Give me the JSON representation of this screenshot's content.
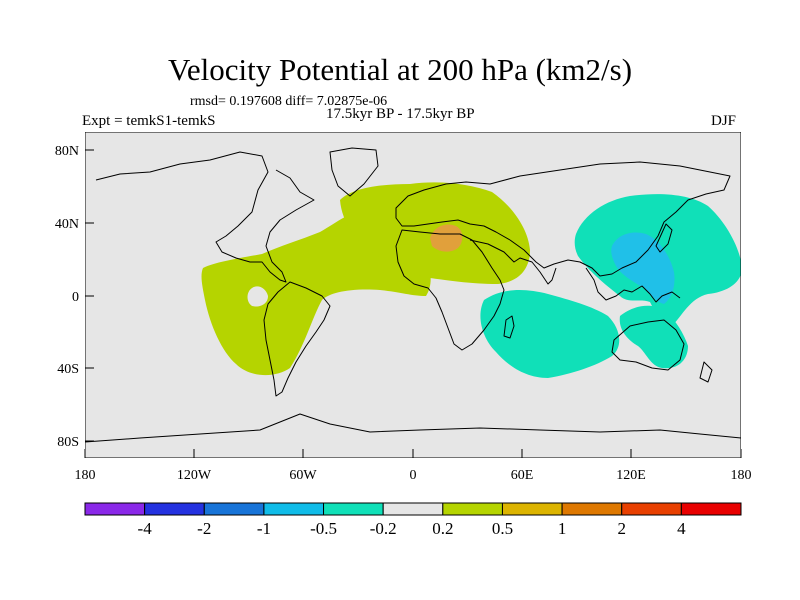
{
  "title": "Velocity Potential at 200 hPa (km2/s)",
  "stats": "rmsd= 0.197608 diff= 7.02875e-06",
  "period": "17.5kyr BP - 17.5kyr BP",
  "experiment": "Expt = temkS1-temkS",
  "season": "DJF",
  "map": {
    "projection": "cylindrical equidistant",
    "lat_range": [
      -90,
      90
    ],
    "lon_range": [
      -180,
      180
    ],
    "background_color": "#e6e6e6",
    "lat_ticks": [
      "80N",
      "40N",
      "0",
      "40S",
      "80S"
    ],
    "lon_ticks": [
      "180",
      "120W",
      "60W",
      "0",
      "60E",
      "120E",
      "180"
    ],
    "anomaly_regions": [
      {
        "name": "positive-0.2-0.5",
        "color": "#b5d400",
        "areas": [
          "tropical Pacific–Americas–Atlantic",
          "Mediterranean–Sahara–Arabia"
        ]
      },
      {
        "name": "positive-0.5-1",
        "color": "#e1a03b",
        "areas": [
          "eastern Mediterranean"
        ]
      },
      {
        "name": "negative-0.5-0.2",
        "color": "#10e0b8",
        "areas": [
          "western Pacific–East Asia",
          "southern Indian Ocean",
          "Maritime Continent–Australia"
        ]
      },
      {
        "name": "negative-1-0.5",
        "color": "#20c0e8",
        "areas": [
          "South China Sea–Philippines"
        ]
      }
    ]
  },
  "colorbar": {
    "colors": [
      "#8a28e8",
      "#2432e0",
      "#1874d8",
      "#10bce8",
      "#10e0b8",
      "#e6e6e6",
      "#b5d400",
      "#dcb400",
      "#de7800",
      "#e84000",
      "#e80000"
    ],
    "labels": [
      "-4",
      "-2",
      "-1",
      "-0.5",
      "-0.2",
      "0.2",
      "0.5",
      "1",
      "2",
      "4"
    ]
  }
}
